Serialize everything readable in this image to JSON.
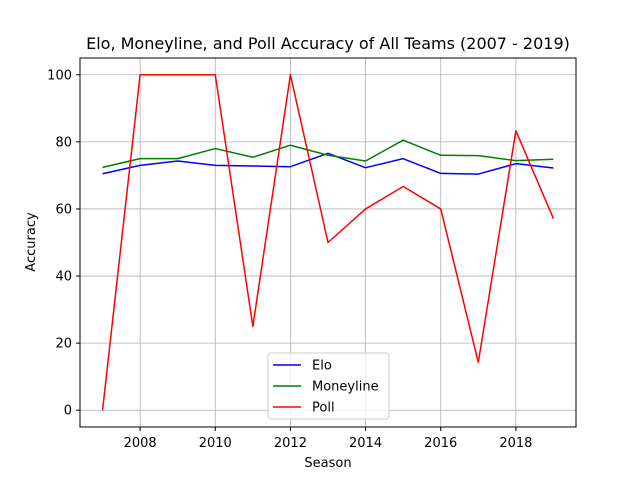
{
  "chart_data": {
    "type": "line",
    "title": "Elo, Moneyline, and Poll Accuracy of All Teams (2007 - 2019)",
    "xlabel": "Season",
    "ylabel": "Accuracy",
    "x": [
      2007,
      2008,
      2009,
      2010,
      2011,
      2012,
      2013,
      2014,
      2015,
      2016,
      2017,
      2018,
      2019
    ],
    "xlim": [
      2006.4,
      2019.6
    ],
    "ylim": [
      -5,
      105
    ],
    "xticks": [
      "2008",
      "2010",
      "2012",
      "2014",
      "2016",
      "2018"
    ],
    "yticks": [
      "0",
      "20",
      "40",
      "60",
      "80",
      "100"
    ],
    "grid": true,
    "legend_position": "lower-center",
    "series": [
      {
        "name": "Elo",
        "color": "#0000ff",
        "values": [
          70.5,
          73.0,
          74.3,
          73.0,
          72.8,
          72.6,
          76.6,
          72.3,
          75.0,
          70.6,
          70.4,
          73.5,
          72.2
        ]
      },
      {
        "name": "Moneyline",
        "color": "#008000",
        "values": [
          72.4,
          75.0,
          75.0,
          78.0,
          75.4,
          79.0,
          76.0,
          74.3,
          80.5,
          76.0,
          75.9,
          74.4,
          74.8
        ]
      },
      {
        "name": "Poll",
        "color": "#ff0000",
        "values": [
          0,
          100,
          100,
          100,
          25,
          100,
          50,
          60,
          66.7,
          60,
          14.3,
          83.3,
          57.1
        ]
      }
    ]
  }
}
